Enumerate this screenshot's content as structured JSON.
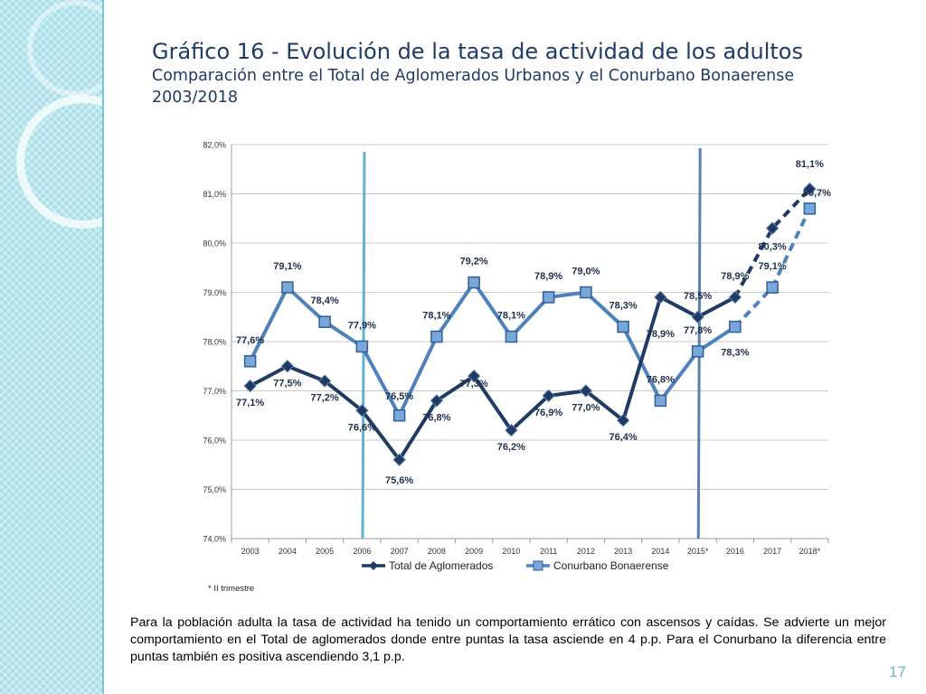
{
  "slide": {
    "title": "Gráfico 16 - Evolución de la tasa de actividad de los adultos",
    "subtitle": "Comparación entre el Total de Aglomerados Urbanos y el Conurbano Bonaerense",
    "period": "2003/2018",
    "paragraph": "Para la población adulta la tasa de actividad ha tenido un comportamiento errático con ascensos y caídas. Se advierte un mejor comportamiento en el Total de aglomerados donde entre puntas la tasa asciende en 4 p.p. Para el Conurbano la diferencia entre puntas también es positiva ascendiendo 3,1 p.p.",
    "page_number": "17"
  },
  "chart_data": {
    "type": "line",
    "categories": [
      "2003",
      "2004",
      "2005",
      "2006",
      "2007",
      "2008",
      "2009",
      "2010",
      "2011",
      "2012",
      "2013",
      "2014",
      "2015*",
      "2016",
      "2017",
      "2018*"
    ],
    "ylim": [
      74,
      82
    ],
    "yticks": [
      "74,0%",
      "75,0%",
      "76,0%",
      "77,0%",
      "78,0%",
      "79,0%",
      "80,0%",
      "81,0%",
      "82,0%"
    ],
    "grid": true,
    "legend_position": "bottom",
    "footnote": "* II trimestre",
    "series": [
      {
        "name": "Total de Aglomerados",
        "color": "#1f3b63",
        "marker": "diamond",
        "values": [
          77.1,
          77.5,
          77.2,
          76.6,
          75.6,
          76.8,
          77.3,
          76.2,
          76.9,
          77.0,
          76.4,
          78.9,
          78.5,
          78.9,
          80.3,
          81.1
        ],
        "labels": [
          "77,1%",
          "77,5%",
          "77,2%",
          "76,6%",
          "75,6%",
          "76,8%",
          "77,3%",
          "76,2%",
          "76,9%",
          "77,0%",
          "76,4%",
          "78,9%",
          "78,5%",
          "78,9%",
          "80,3%",
          "81,1%"
        ]
      },
      {
        "name": "Conurbano Bonaerense",
        "color": "#4f81bd",
        "marker": "square",
        "values": [
          77.6,
          79.1,
          78.4,
          77.9,
          76.5,
          78.1,
          79.2,
          78.1,
          78.9,
          79.0,
          78.3,
          76.8,
          77.8,
          78.3,
          79.1,
          80.7
        ],
        "labels": [
          "77,6%",
          "79,1%",
          "78,4%",
          "77,9%",
          "76,5%",
          "78,1%",
          "79,2%",
          "78,1%",
          "78,9%",
          "79,0%",
          "78,3%",
          "76,8%",
          "77,8%",
          "78,3%",
          "79,1%",
          "80,7%"
        ]
      }
    ]
  }
}
